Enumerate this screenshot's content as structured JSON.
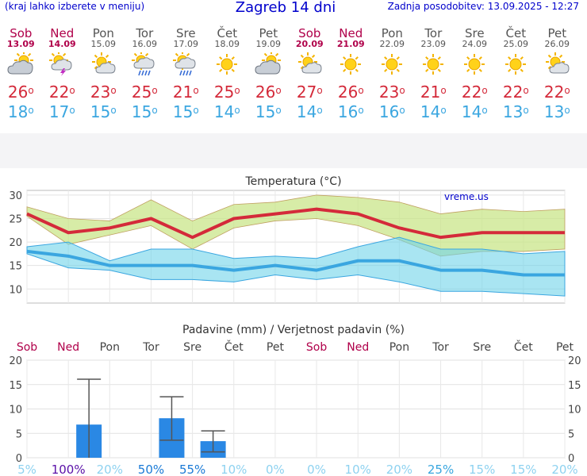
{
  "header": {
    "left_note": "(kraj lahko izberete v meniju)",
    "title": "Zagreb 14 dni",
    "updated": "Zadnja posodobitev: 13.09.2025 - 12:27"
  },
  "days": [
    {
      "name": "Sob",
      "date": "13.09",
      "weekend": true,
      "icon": "partly-cloudy-icon",
      "tmax": "26",
      "tmin": "18"
    },
    {
      "name": "Ned",
      "date": "14.09",
      "weekend": true,
      "icon": "thunderstorm-sun-icon",
      "tmax": "22",
      "tmin": "17"
    },
    {
      "name": "Pon",
      "date": "15.09",
      "weekend": false,
      "icon": "sun-cloud-icon",
      "tmax": "23",
      "tmin": "15"
    },
    {
      "name": "Tor",
      "date": "16.09",
      "weekend": false,
      "icon": "rain-sun-icon",
      "tmax": "25",
      "tmin": "15"
    },
    {
      "name": "Sre",
      "date": "17.09",
      "weekend": false,
      "icon": "rain-sun-icon",
      "tmax": "21",
      "tmin": "15"
    },
    {
      "name": "Čet",
      "date": "18.09",
      "weekend": false,
      "icon": "sun-icon",
      "tmax": "25",
      "tmin": "14"
    },
    {
      "name": "Pet",
      "date": "19.09",
      "weekend": false,
      "icon": "partly-cloudy-icon",
      "tmax": "26",
      "tmin": "15"
    },
    {
      "name": "Sob",
      "date": "20.09",
      "weekend": true,
      "icon": "sun-cloud-icon",
      "tmax": "27",
      "tmin": "14"
    },
    {
      "name": "Ned",
      "date": "21.09",
      "weekend": true,
      "icon": "sun-icon",
      "tmax": "26",
      "tmin": "16"
    },
    {
      "name": "Pon",
      "date": "22.09",
      "weekend": false,
      "icon": "sun-icon",
      "tmax": "23",
      "tmin": "16"
    },
    {
      "name": "Tor",
      "date": "23.09",
      "weekend": false,
      "icon": "sun-icon",
      "tmax": "21",
      "tmin": "14"
    },
    {
      "name": "Sre",
      "date": "24.09",
      "weekend": false,
      "icon": "sun-icon",
      "tmax": "22",
      "tmin": "14"
    },
    {
      "name": "Čet",
      "date": "25.09",
      "weekend": false,
      "icon": "sun-icon",
      "tmax": "22",
      "tmin": "13"
    },
    {
      "name": "Pet",
      "date": "26.09",
      "weekend": false,
      "icon": "sun-cloud-icon",
      "tmax": "22",
      "tmin": "13"
    }
  ],
  "degree_symbol": "o",
  "colors": {
    "max": "#d42a3a",
    "min": "#3aa6e0",
    "bar": "#2a88e4",
    "weekend": "#b0004a"
  },
  "chart_data": [
    {
      "type": "line",
      "title": "Temperatura (°C)",
      "watermark": "vreme.us",
      "ylim": [
        7,
        31
      ],
      "yticks": [
        10,
        15,
        20,
        25,
        30
      ],
      "categories": [
        "13.09",
        "14.09",
        "15.09",
        "16.09",
        "17.09",
        "18.09",
        "19.09",
        "20.09",
        "21.09",
        "22.09",
        "23.09",
        "24.09",
        "25.09",
        "26.09"
      ],
      "series": [
        {
          "values": [
            26,
            22,
            23,
            25,
            21,
            25,
            26,
            27,
            26,
            23,
            21,
            22,
            22,
            22
          ]
        },
        {
          "values": [
            27.5,
            25,
            24.5,
            29,
            24.5,
            28,
            28.5,
            30,
            29.5,
            28.5,
            26,
            27,
            26.5,
            27
          ]
        },
        {
          "values": [
            25.5,
            19.5,
            21.5,
            23.5,
            18.5,
            23,
            24.5,
            25,
            23.5,
            20.5,
            17,
            18,
            18,
            18.5
          ]
        },
        {
          "values": [
            18,
            17,
            15,
            15,
            15,
            14,
            15,
            14,
            16,
            16,
            14,
            14,
            13,
            13
          ]
        },
        {
          "values": [
            19,
            20,
            16,
            18.5,
            18.5,
            16.5,
            17,
            16.5,
            19,
            21,
            18.5,
            18.5,
            17.5,
            18
          ]
        },
        {
          "values": [
            17.5,
            14.5,
            14,
            12,
            12,
            11.5,
            13,
            12,
            13,
            11.5,
            9.5,
            9.5,
            9,
            8.5
          ]
        }
      ]
    },
    {
      "type": "bar",
      "title": "Padavine (mm) / Verjetnost padavin (%)",
      "ylim": [
        0,
        20
      ],
      "yticks": [
        0,
        5,
        10,
        15,
        20
      ],
      "categories": [
        "Sob",
        "Ned",
        "Pon",
        "Tor",
        "Sre",
        "Čet",
        "Pet",
        "Sob",
        "Ned",
        "Pon",
        "Tor",
        "Sre",
        "Čet",
        "Pet"
      ],
      "values": [
        0,
        6.8,
        0,
        8.1,
        3.4,
        0,
        0,
        0,
        0,
        0,
        0,
        0,
        0,
        0
      ],
      "error_low": [
        0,
        0,
        0,
        3.6,
        1.2,
        0,
        0,
        0,
        0,
        0,
        0,
        0,
        0,
        0
      ],
      "error_high": [
        0,
        16.1,
        0,
        12.5,
        5.5,
        0,
        0,
        0,
        0,
        0,
        0,
        0,
        0,
        0
      ],
      "probability": [
        "5%",
        "100%",
        "20%",
        "50%",
        "55%",
        "10%",
        "0%",
        "0%",
        "10%",
        "20%",
        "25%",
        "15%",
        "15%",
        "20%"
      ]
    }
  ]
}
